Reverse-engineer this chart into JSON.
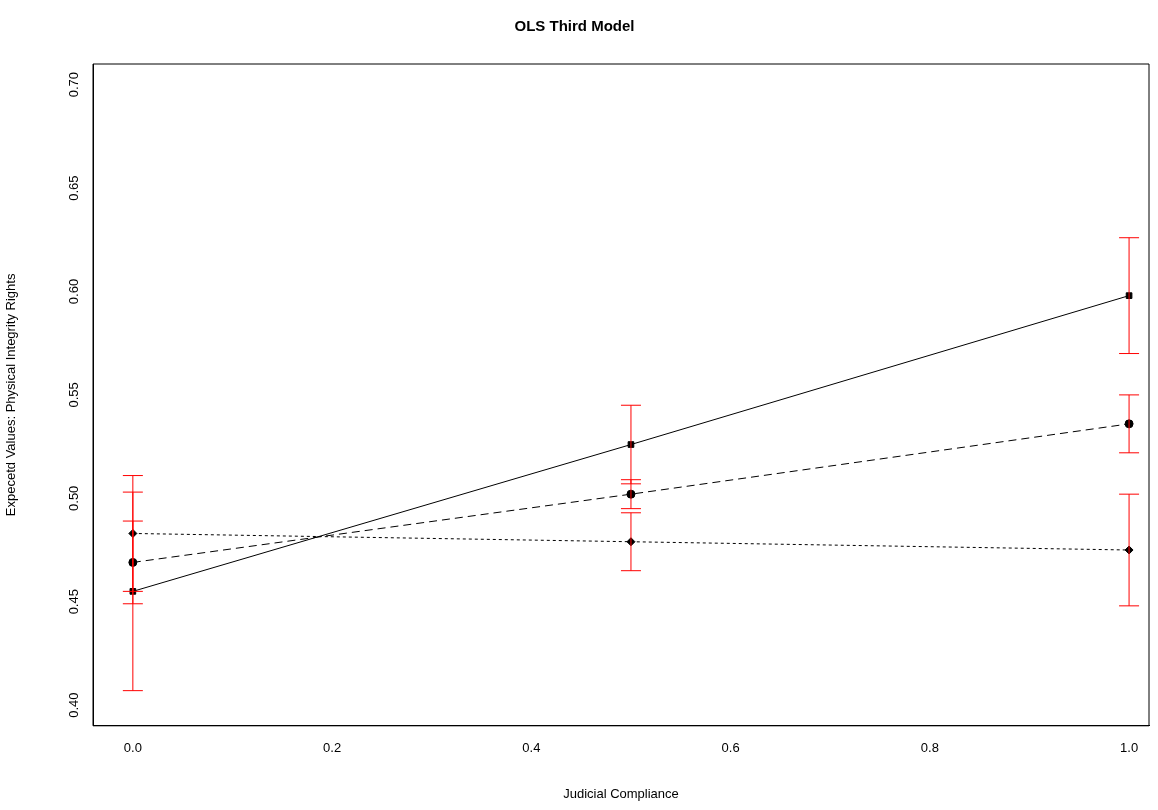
{
  "chart_data": {
    "type": "line",
    "title": "OLS Third Model",
    "xlabel": "Judicial Compliance",
    "ylabel": "Expecetd Values: Physical Integrity Rights",
    "x": [
      0,
      0.5,
      1
    ],
    "series": [
      {
        "color": "#000000",
        "values": [
          0.455,
          0.526,
          0.598
        ],
        "errors": [
          0.048,
          0.019,
          0.028
        ],
        "marker": "square",
        "line_style": "solid"
      },
      {
        "color": "#000000",
        "values": [
          0.469,
          0.502,
          0.536
        ],
        "errors": [
          0.02,
          0.007,
          0.014
        ],
        "marker": "circle",
        "line_style": "dashed"
      },
      {
        "color": "#000000",
        "values": [
          0.483,
          0.479,
          0.475
        ],
        "errors": [
          0.028,
          0.014,
          0.027
        ],
        "marker": "diamond",
        "line_style": "dotted"
      }
    ],
    "xlim": [
      -0.04,
      1.02
    ],
    "ylim": [
      0.39,
      0.71
    ],
    "xticks": [
      {
        "value": 0,
        "label": "0.0"
      },
      0.2,
      0.4,
      0.6,
      0.8,
      {
        "value": 1,
        "label": "1.0"
      }
    ],
    "yticks": [
      {
        "value": 0.4,
        "label": "0.40"
      },
      0.45,
      {
        "value": 0.5,
        "label": "0.50"
      },
      0.55,
      {
        "value": 0.6,
        "label": "0.60"
      },
      0.65,
      {
        "value": 0.7,
        "label": "0.70"
      }
    ],
    "grid": false,
    "legend": false
  }
}
